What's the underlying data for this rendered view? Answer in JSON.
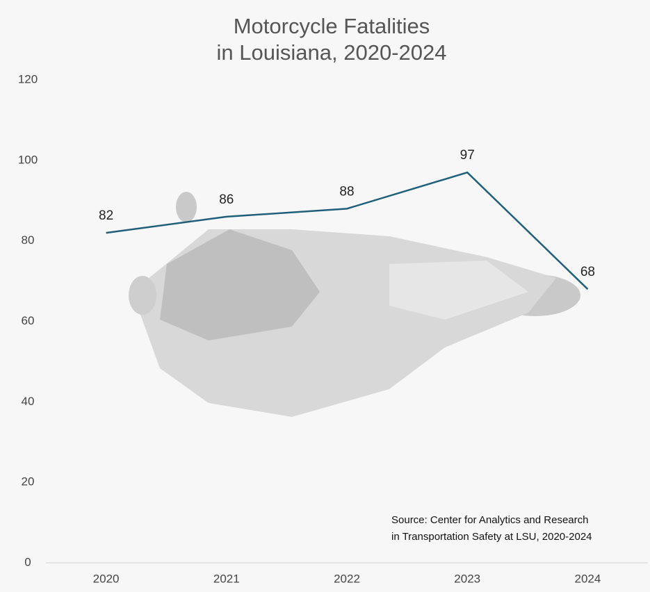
{
  "chart_data": {
    "type": "line",
    "title": [
      "Motorcycle Fatalities",
      "in Louisiana, 2020-2024"
    ],
    "categories": [
      "2020",
      "2021",
      "2022",
      "2023",
      "2024"
    ],
    "series": [
      {
        "color": "#1f5f7a",
        "values": [
          82,
          86,
          88,
          97,
          68
        ]
      }
    ],
    "ylim": [
      0,
      120
    ],
    "yticks": [
      0,
      20,
      40,
      60,
      80,
      100,
      120
    ],
    "grid": false,
    "source": [
      "Source: Center for Analytics and Research",
      "in Transportation Safety at LSU, 2020-2024"
    ]
  }
}
